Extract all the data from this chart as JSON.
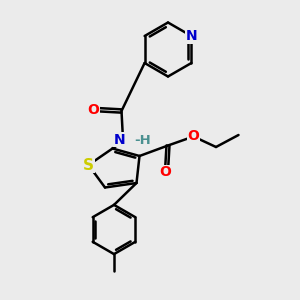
{
  "background_color": "#ebebeb",
  "atom_colors": {
    "N": "#0000cc",
    "O": "#ff0000",
    "S": "#cccc00",
    "H": "#4a9090",
    "C": "#000000"
  },
  "bond_color": "#000000",
  "bond_width": 1.8,
  "figsize": [
    3.0,
    3.0
  ],
  "dpi": 100,
  "xlim": [
    0,
    10
  ],
  "ylim": [
    0,
    10
  ]
}
